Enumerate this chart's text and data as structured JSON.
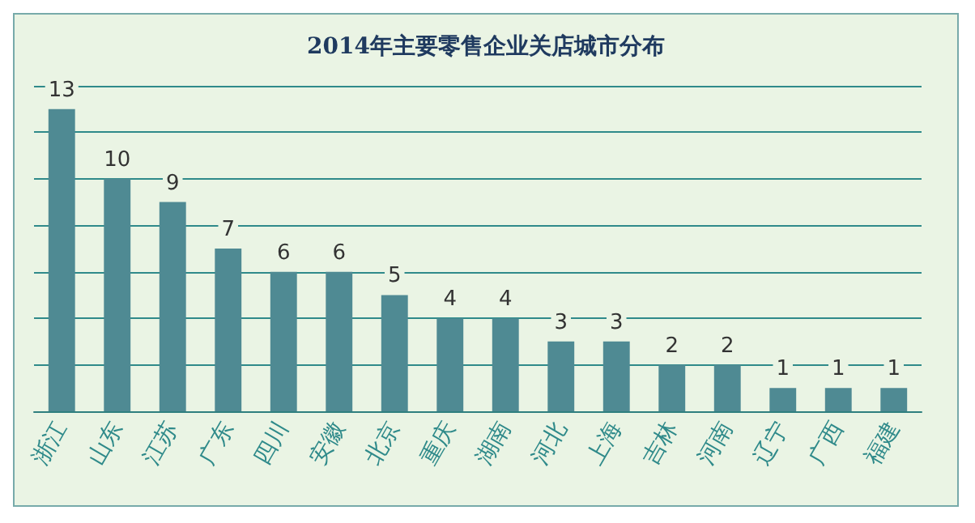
{
  "chart_data": {
    "type": "bar",
    "title": "2014年主要零售企业关店城市分布",
    "categories": [
      "浙江",
      "山东",
      "江苏",
      "广东",
      "四川",
      "安徽",
      "北京",
      "重庆",
      "湖南",
      "河北",
      "上海",
      "吉林",
      "河南",
      "辽宁",
      "广西",
      "福建"
    ],
    "values": [
      13,
      10,
      9,
      7,
      6,
      6,
      5,
      4,
      4,
      3,
      3,
      2,
      2,
      1,
      1,
      1
    ],
    "color": "#4f8a93",
    "ylim": [
      0,
      14
    ],
    "yticks": [
      0,
      2,
      4,
      6,
      8,
      10,
      12,
      14
    ],
    "grid": "y",
    "tick_labels": "x",
    "data_labels": true
  }
}
